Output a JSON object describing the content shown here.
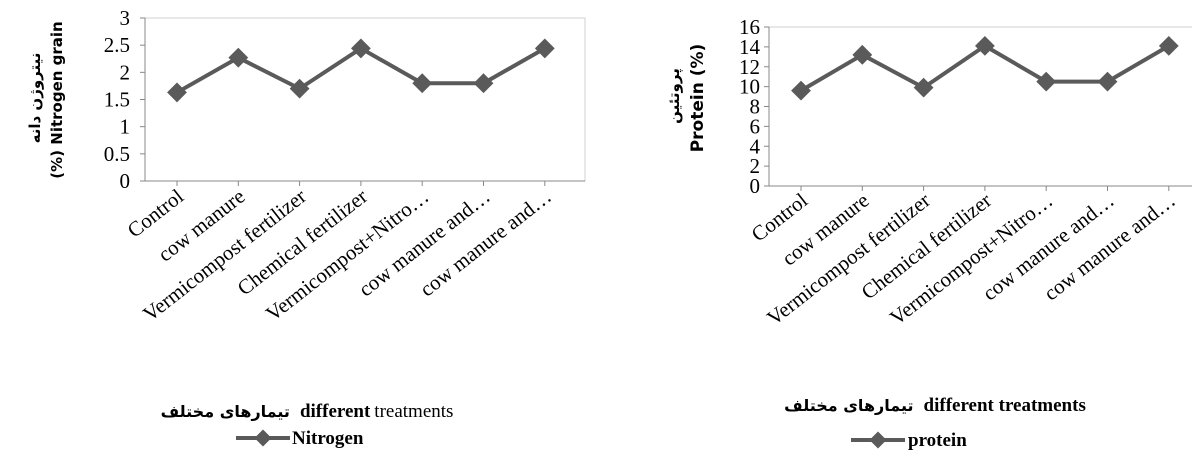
{
  "colors": {
    "line": "#5a5a5a",
    "axis": "#888888",
    "text": "#000000"
  },
  "chart_data": [
    {
      "type": "line",
      "categories": [
        "Control",
        "cow manure",
        "Vermicompost fertilizer",
        "Chemical fertilizer",
        "Vermicompost+Nitro…",
        "cow manure and…",
        "cow manure and…"
      ],
      "series": [
        {
          "name": "Nitrogen",
          "values": [
            1.63,
            2.27,
            1.7,
            2.44,
            1.8,
            1.8,
            2.44
          ]
        }
      ],
      "ylim": [
        0,
        3
      ],
      "yticks": [
        "0",
        "0.5",
        "1",
        "1.5",
        "2",
        "2.5",
        "3"
      ],
      "ylabel_fa": "نیتروژن دانه",
      "ylabel_en": "(%)  Nitrogen grain",
      "xlabel_fa": "تیمارهای مختلف",
      "xlabel_en_bold": "different",
      "xlabel_en_rest": " treatments",
      "grid": false,
      "legend": "bottom"
    },
    {
      "type": "line",
      "categories": [
        "Control",
        "cow manure",
        "Vermicompost fertilizer",
        "Chemical fertilizer",
        "Vermicompost+Nitro…",
        "cow manure and…",
        "cow manure and…"
      ],
      "series": [
        {
          "name": "protein",
          "values": [
            9.6,
            13.2,
            9.9,
            14.1,
            10.5,
            10.5,
            14.1
          ]
        }
      ],
      "ylim": [
        0,
        16
      ],
      "yticks": [
        "0",
        "2",
        "4",
        "6",
        "8",
        "10",
        "12",
        "14",
        "16"
      ],
      "ylabel_fa": "پروتئین",
      "ylabel_en": "Protein (%)",
      "xlabel_fa": "تیمارهای مختلف",
      "xlabel_en_bold": "different treatments",
      "xlabel_en_rest": "",
      "grid": false,
      "legend": "bottom"
    }
  ]
}
